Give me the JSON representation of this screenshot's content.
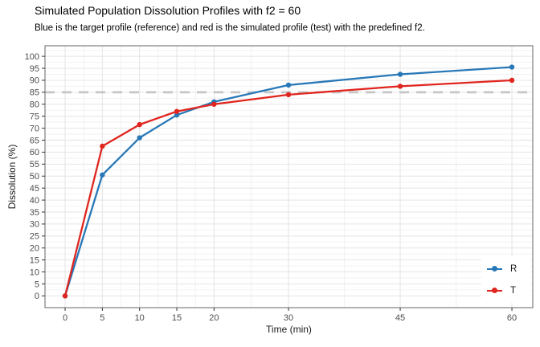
{
  "chart_data": {
    "type": "line",
    "title": "Simulated Population Dissolution Profiles with f2 = 60",
    "subtitle": "Blue is the target profile (reference) and red is the simulated profile (test) with the predefined f2.",
    "xlabel": "Time (min)",
    "ylabel": "Dissolution (%)",
    "x": [
      0,
      5,
      10,
      15,
      20,
      30,
      45,
      60
    ],
    "series": [
      {
        "name": "R",
        "color": "#2878B8",
        "values": [
          0,
          50.5,
          66,
          75.5,
          81,
          88,
          92.5,
          95.5
        ]
      },
      {
        "name": "T",
        "color": "#E0251F",
        "values": [
          0,
          62.5,
          71.5,
          77,
          80,
          84,
          87.5,
          90
        ]
      }
    ],
    "reference_line": {
      "y": 85,
      "style": "dashed",
      "color": "#C6C6C6"
    },
    "x_ticks": [
      0,
      5,
      10,
      15,
      20,
      30,
      45,
      60
    ],
    "x_minor_ticks": [
      2.5,
      7.5,
      12.5,
      17.5,
      25,
      37.5,
      52.5
    ],
    "y_ticks": [
      0,
      5,
      10,
      15,
      20,
      25,
      30,
      35,
      40,
      45,
      50,
      55,
      60,
      65,
      70,
      75,
      80,
      85,
      90,
      95,
      100
    ],
    "y_minor_ticks": [
      2.5,
      7.5,
      12.5,
      17.5,
      22.5,
      27.5,
      32.5,
      37.5,
      42.5,
      47.5,
      52.5,
      57.5,
      62.5,
      67.5,
      72.5,
      77.5,
      82.5,
      87.5,
      92.5,
      97.5,
      102.5
    ],
    "xlim": [
      -2.7,
      62.8
    ],
    "ylim": [
      -4.9,
      104.4
    ],
    "grid": true,
    "legend_position": "inside-bottom-right",
    "colors": {
      "grid_major": "#E4E4E4",
      "grid_minor": "#F2F2F2",
      "panel_border": "#7E7E7E",
      "tick_mark": "#333333",
      "tick_label": "#4D4D4D"
    }
  }
}
